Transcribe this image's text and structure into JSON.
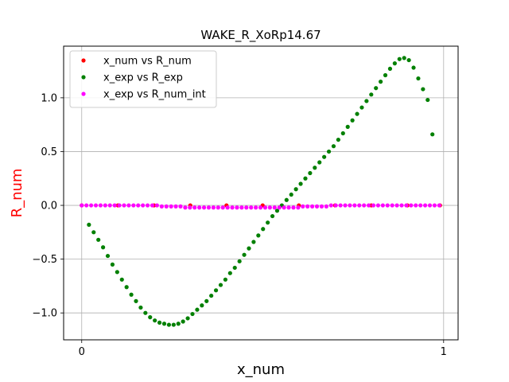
{
  "chart_data": {
    "type": "scatter",
    "title": "WAKE_R_XoRp14.67",
    "xlabel": "x_num",
    "ylabel": "R_num",
    "ylabel_color": "#ff0000",
    "xlim": [
      -0.05,
      1.04
    ],
    "ylim": [
      -1.25,
      1.48
    ],
    "x_ticks": [
      0,
      1
    ],
    "x_tick_labels": [
      "0",
      "1"
    ],
    "y_ticks": [
      -1.0,
      -0.5,
      0.0,
      0.5,
      1.0
    ],
    "y_tick_labels": [
      "−1.0",
      "−0.5",
      "0.0",
      "0.5",
      "1.0"
    ],
    "grid": true,
    "legend_position": "top-left",
    "series": [
      {
        "name": "x_num vs R_num",
        "color": "#ff0000",
        "x": [
          0.0,
          0.1,
          0.2,
          0.3,
          0.4,
          0.5,
          0.6,
          0.7,
          0.8,
          0.9,
          0.99
        ],
        "y": [
          0.0,
          0.0,
          0.0,
          0.0,
          0.0,
          0.0,
          0.0,
          0.0,
          0.0,
          0.0,
          0.0
        ]
      },
      {
        "name": "x_exp vs R_exp",
        "color": "#008000",
        "x": [
          0.02,
          0.033,
          0.046,
          0.059,
          0.072,
          0.085,
          0.098,
          0.111,
          0.124,
          0.137,
          0.15,
          0.163,
          0.176,
          0.189,
          0.202,
          0.215,
          0.228,
          0.241,
          0.254,
          0.267,
          0.28,
          0.293,
          0.306,
          0.319,
          0.332,
          0.345,
          0.358,
          0.371,
          0.384,
          0.397,
          0.41,
          0.423,
          0.436,
          0.449,
          0.462,
          0.475,
          0.488,
          0.501,
          0.514,
          0.527,
          0.54,
          0.553,
          0.566,
          0.579,
          0.592,
          0.605,
          0.618,
          0.631,
          0.644,
          0.657,
          0.67,
          0.683,
          0.696,
          0.709,
          0.722,
          0.735,
          0.748,
          0.761,
          0.774,
          0.787,
          0.8,
          0.813,
          0.826,
          0.839,
          0.852,
          0.865,
          0.878,
          0.891,
          0.904,
          0.917,
          0.93,
          0.943,
          0.956,
          0.969
        ],
        "y": [
          -0.18,
          -0.25,
          -0.32,
          -0.39,
          -0.47,
          -0.55,
          -0.62,
          -0.69,
          -0.76,
          -0.83,
          -0.89,
          -0.95,
          -1.0,
          -1.04,
          -1.07,
          -1.09,
          -1.1,
          -1.11,
          -1.11,
          -1.1,
          -1.08,
          -1.05,
          -1.01,
          -0.97,
          -0.93,
          -0.89,
          -0.84,
          -0.79,
          -0.74,
          -0.69,
          -0.63,
          -0.58,
          -0.52,
          -0.46,
          -0.4,
          -0.34,
          -0.28,
          -0.22,
          -0.16,
          -0.1,
          -0.05,
          0.0,
          0.05,
          0.1,
          0.15,
          0.2,
          0.25,
          0.3,
          0.35,
          0.4,
          0.45,
          0.5,
          0.55,
          0.61,
          0.67,
          0.73,
          0.79,
          0.85,
          0.91,
          0.97,
          1.03,
          1.09,
          1.15,
          1.21,
          1.27,
          1.32,
          1.36,
          1.37,
          1.35,
          1.28,
          1.18,
          1.08,
          0.98,
          0.66
        ]
      },
      {
        "name": "x_exp vs R_num_int",
        "color": "#ff00ff",
        "x": [
          0.0,
          0.013,
          0.026,
          0.039,
          0.052,
          0.065,
          0.078,
          0.091,
          0.104,
          0.117,
          0.13,
          0.143,
          0.156,
          0.169,
          0.182,
          0.195,
          0.208,
          0.221,
          0.234,
          0.247,
          0.26,
          0.273,
          0.286,
          0.299,
          0.312,
          0.325,
          0.338,
          0.351,
          0.364,
          0.377,
          0.39,
          0.403,
          0.416,
          0.429,
          0.442,
          0.455,
          0.468,
          0.481,
          0.494,
          0.507,
          0.52,
          0.533,
          0.546,
          0.559,
          0.572,
          0.585,
          0.598,
          0.611,
          0.624,
          0.637,
          0.65,
          0.663,
          0.676,
          0.689,
          0.702,
          0.715,
          0.728,
          0.741,
          0.754,
          0.767,
          0.78,
          0.793,
          0.806,
          0.819,
          0.832,
          0.845,
          0.858,
          0.871,
          0.884,
          0.897,
          0.91,
          0.923,
          0.936,
          0.949,
          0.962,
          0.975,
          0.988
        ],
        "y": [
          0.0,
          0.0,
          0.0,
          0.0,
          0.0,
          0.0,
          0.0,
          0.0,
          0.0,
          0.0,
          0.0,
          0.0,
          0.0,
          0.0,
          0.0,
          0.0,
          0.0,
          -0.01,
          -0.01,
          -0.01,
          -0.01,
          -0.01,
          -0.02,
          -0.02,
          -0.02,
          -0.02,
          -0.02,
          -0.02,
          -0.02,
          -0.02,
          -0.02,
          -0.02,
          -0.02,
          -0.02,
          -0.02,
          -0.02,
          -0.02,
          -0.02,
          -0.02,
          -0.02,
          -0.02,
          -0.02,
          -0.02,
          -0.02,
          -0.02,
          -0.02,
          -0.02,
          -0.01,
          -0.01,
          -0.01,
          -0.01,
          -0.01,
          -0.01,
          0.0,
          0.0,
          0.0,
          0.0,
          0.0,
          0.0,
          0.0,
          0.0,
          0.0,
          0.0,
          0.0,
          0.0,
          0.0,
          0.0,
          0.0,
          0.0,
          0.0,
          0.0,
          0.0,
          0.0,
          0.0,
          0.0,
          0.0,
          0.0
        ]
      }
    ]
  }
}
